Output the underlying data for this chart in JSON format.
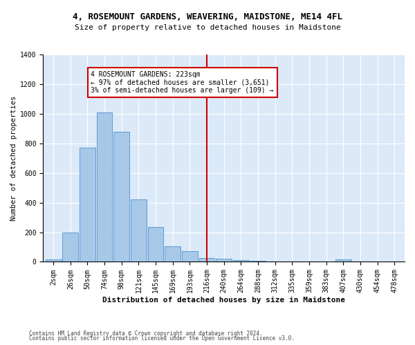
{
  "title": "4, ROSEMOUNT GARDENS, WEAVERING, MAIDSTONE, ME14 4FL",
  "subtitle": "Size of property relative to detached houses in Maidstone",
  "xlabel": "Distribution of detached houses by size in Maidstone",
  "ylabel": "Number of detached properties",
  "footnote1": "Contains HM Land Registry data © Crown copyright and database right 2024.",
  "footnote2": "Contains public sector information licensed under the Open Government Licence v3.0.",
  "bar_labels": [
    "2sqm",
    "26sqm",
    "50sqm",
    "74sqm",
    "98sqm",
    "121sqm",
    "145sqm",
    "169sqm",
    "193sqm",
    "216sqm",
    "240sqm",
    "264sqm",
    "288sqm",
    "312sqm",
    "335sqm",
    "359sqm",
    "383sqm",
    "407sqm",
    "430sqm",
    "454sqm",
    "478sqm"
  ],
  "bar_values": [
    15,
    200,
    770,
    1010,
    880,
    420,
    235,
    105,
    70,
    25,
    20,
    10,
    5,
    0,
    0,
    0,
    0,
    15,
    0,
    0,
    0
  ],
  "bar_color": "#a8c8e8",
  "bar_edge_color": "#5b9bd5",
  "bg_color": "#dce9f8",
  "grid_color": "#ffffff",
  "vline_color": "#cc0000",
  "annotation_box_color": "#cc0000",
  "ylim": [
    0,
    1400
  ],
  "yticks": [
    0,
    200,
    400,
    600,
    800,
    1000,
    1200,
    1400
  ],
  "title_fontsize": 9,
  "subtitle_fontsize": 8,
  "xlabel_fontsize": 8,
  "ylabel_fontsize": 7.5,
  "tick_fontsize": 7,
  "annotation_fontsize": 7,
  "footnote_fontsize": 5.5
}
